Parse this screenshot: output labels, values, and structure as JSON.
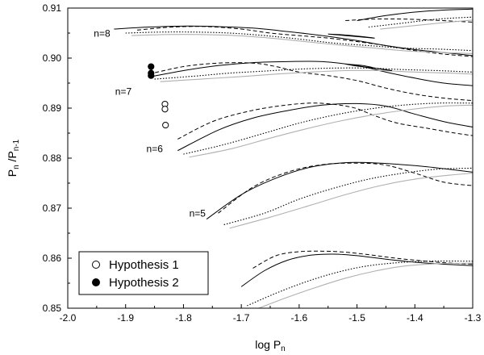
{
  "chart_data": {
    "type": "line",
    "title": "",
    "xlabel": {
      "main": "log P",
      "sub": "n"
    },
    "ylabel": {
      "main": "P",
      "sub1": "n",
      "mid": " /P",
      "sub2": "n-1"
    },
    "xlim": [
      -2.0,
      -1.3
    ],
    "ylim": [
      0.85,
      0.91
    ],
    "x_ticks": [
      -2.0,
      -1.9,
      -1.8,
      -1.7,
      -1.6,
      -1.5,
      -1.4,
      -1.3
    ],
    "x_tick_labels": [
      "-2.0",
      "-1.9",
      "-1.8",
      "-1.7",
      "-1.6",
      "-1.5",
      "-1.4",
      "-1.3"
    ],
    "y_ticks": [
      0.85,
      0.86,
      0.87,
      0.88,
      0.89,
      0.9,
      0.91
    ],
    "y_tick_labels": [
      "0.85",
      "0.86",
      "0.87",
      "0.88",
      "0.89",
      "0.90",
      "0.91"
    ],
    "styles": {
      "solid": {
        "color": "#000000",
        "dash": ""
      },
      "dashed": {
        "color": "#000000",
        "dash": "5,3"
      },
      "dotted": {
        "color": "#000000",
        "dash": "1.5,2"
      },
      "gray": {
        "color": "#b0b0b0",
        "dash": ""
      }
    },
    "series": [
      {
        "name": "n=5 solid",
        "style": "solid",
        "points": [
          [
            -1.76,
            0.8678
          ],
          [
            -1.7,
            0.8727
          ],
          [
            -1.64,
            0.876
          ],
          [
            -1.58,
            0.8782
          ],
          [
            -1.52,
            0.8791
          ],
          [
            -1.46,
            0.879
          ],
          [
            -1.4,
            0.8785
          ],
          [
            -1.35,
            0.8779
          ],
          [
            -1.3,
            0.8772
          ]
        ]
      },
      {
        "name": "n=5 dashed",
        "style": "dashed",
        "points": [
          [
            -1.74,
            0.869
          ],
          [
            -1.68,
            0.8742
          ],
          [
            -1.62,
            0.8772
          ],
          [
            -1.56,
            0.8787
          ],
          [
            -1.5,
            0.879
          ],
          [
            -1.45,
            0.8786
          ],
          [
            -1.4,
            0.877
          ],
          [
            -1.35,
            0.8752
          ],
          [
            -1.3,
            0.8745
          ]
        ]
      },
      {
        "name": "n=5 dotted",
        "style": "dotted",
        "points": [
          [
            -1.73,
            0.8667
          ],
          [
            -1.66,
            0.869
          ],
          [
            -1.6,
            0.8718
          ],
          [
            -1.54,
            0.874
          ],
          [
            -1.48,
            0.8758
          ],
          [
            -1.42,
            0.877
          ],
          [
            -1.36,
            0.8778
          ],
          [
            -1.3,
            0.878
          ]
        ]
      },
      {
        "name": "n=5 gray",
        "style": "gray",
        "points": [
          [
            -1.72,
            0.866
          ],
          [
            -1.65,
            0.8682
          ],
          [
            -1.58,
            0.8706
          ],
          [
            -1.52,
            0.8727
          ],
          [
            -1.46,
            0.8745
          ],
          [
            -1.4,
            0.8758
          ],
          [
            -1.34,
            0.8766
          ],
          [
            -1.3,
            0.877
          ]
        ]
      },
      {
        "name": "n=6 solid",
        "style": "solid",
        "points": [
          [
            -1.81,
            0.8815
          ],
          [
            -1.74,
            0.8856
          ],
          [
            -1.68,
            0.888
          ],
          [
            -1.62,
            0.8895
          ],
          [
            -1.56,
            0.8906
          ],
          [
            -1.5,
            0.8909
          ],
          [
            -1.45,
            0.8904
          ],
          [
            -1.4,
            0.8888
          ],
          [
            -1.35,
            0.8873
          ],
          [
            -1.3,
            0.8862
          ]
        ]
      },
      {
        "name": "n=6 dashed",
        "style": "dashed",
        "points": [
          [
            -1.81,
            0.8838
          ],
          [
            -1.75,
            0.8873
          ],
          [
            -1.69,
            0.8893
          ],
          [
            -1.63,
            0.8905
          ],
          [
            -1.57,
            0.891
          ],
          [
            -1.51,
            0.8902
          ],
          [
            -1.47,
            0.8885
          ],
          [
            -1.43,
            0.887
          ],
          [
            -1.38,
            0.886
          ],
          [
            -1.33,
            0.885
          ],
          [
            -1.3,
            0.8845
          ]
        ]
      },
      {
        "name": "n=6 dotted",
        "style": "dotted",
        "points": [
          [
            -1.8,
            0.8808
          ],
          [
            -1.73,
            0.8827
          ],
          [
            -1.66,
            0.885
          ],
          [
            -1.6,
            0.887
          ],
          [
            -1.54,
            0.8886
          ],
          [
            -1.48,
            0.8898
          ],
          [
            -1.42,
            0.8906
          ],
          [
            -1.36,
            0.891
          ],
          [
            -1.3,
            0.891
          ]
        ]
      },
      {
        "name": "n=6 gray",
        "style": "gray",
        "points": [
          [
            -1.79,
            0.8802
          ],
          [
            -1.72,
            0.8818
          ],
          [
            -1.65,
            0.884
          ],
          [
            -1.59,
            0.8858
          ],
          [
            -1.53,
            0.8874
          ],
          [
            -1.47,
            0.8887
          ],
          [
            -1.41,
            0.8897
          ],
          [
            -1.35,
            0.8904
          ],
          [
            -1.3,
            0.8906
          ]
        ]
      },
      {
        "name": "n=7 solid",
        "style": "solid",
        "points": [
          [
            -1.86,
            0.8962
          ],
          [
            -1.8,
            0.8975
          ],
          [
            -1.74,
            0.8985
          ],
          [
            -1.68,
            0.8991
          ],
          [
            -1.62,
            0.8993
          ],
          [
            -1.56,
            0.8993
          ],
          [
            -1.5,
            0.8985
          ],
          [
            -1.45,
            0.8972
          ],
          [
            -1.4,
            0.896
          ],
          [
            -1.35,
            0.895
          ],
          [
            -1.3,
            0.8945
          ]
        ]
      },
      {
        "name": "n=7 dashed",
        "style": "dashed",
        "points": [
          [
            -1.86,
            0.8968
          ],
          [
            -1.8,
            0.8983
          ],
          [
            -1.74,
            0.899
          ],
          [
            -1.68,
            0.899
          ],
          [
            -1.64,
            0.8983
          ],
          [
            -1.6,
            0.8972
          ],
          [
            -1.55,
            0.8965
          ],
          [
            -1.5,
            0.8955
          ],
          [
            -1.45,
            0.894
          ],
          [
            -1.4,
            0.8928
          ],
          [
            -1.35,
            0.892
          ],
          [
            -1.3,
            0.8915
          ]
        ]
      },
      {
        "name": "n=7 dotted",
        "style": "dotted",
        "points": [
          [
            -1.85,
            0.8958
          ],
          [
            -1.78,
            0.8964
          ],
          [
            -1.72,
            0.897
          ],
          [
            -1.66,
            0.8974
          ],
          [
            -1.6,
            0.8978
          ],
          [
            -1.54,
            0.898
          ],
          [
            -1.48,
            0.898
          ],
          [
            -1.42,
            0.8977
          ],
          [
            -1.36,
            0.8975
          ],
          [
            -1.3,
            0.8972
          ]
        ]
      },
      {
        "name": "n=7 gray",
        "style": "gray",
        "points": [
          [
            -1.84,
            0.8953
          ],
          [
            -1.77,
            0.8958
          ],
          [
            -1.7,
            0.8963
          ],
          [
            -1.64,
            0.8968
          ],
          [
            -1.58,
            0.8972
          ],
          [
            -1.52,
            0.8975
          ],
          [
            -1.46,
            0.8975
          ],
          [
            -1.4,
            0.8972
          ],
          [
            -1.34,
            0.897
          ],
          [
            -1.3,
            0.8968
          ]
        ]
      },
      {
        "name": "n=7 loop",
        "style": "solid",
        "points": [
          [
            -1.52,
            0.8988
          ],
          [
            -1.49,
            0.8985
          ],
          [
            -1.46,
            0.8978
          ],
          [
            -1.44,
            0.8975
          ],
          [
            -1.47,
            0.898
          ],
          [
            -1.5,
            0.8984
          ],
          [
            -1.52,
            0.8988
          ]
        ]
      },
      {
        "name": "n=8 solid",
        "style": "solid",
        "points": [
          [
            -1.92,
            0.9058
          ],
          [
            -1.86,
            0.9062
          ],
          [
            -1.8,
            0.9064
          ],
          [
            -1.74,
            0.9063
          ],
          [
            -1.68,
            0.906
          ],
          [
            -1.62,
            0.9053
          ],
          [
            -1.56,
            0.9045
          ],
          [
            -1.5,
            0.9035
          ],
          [
            -1.45,
            0.9025
          ],
          [
            -1.4,
            0.9017
          ],
          [
            -1.35,
            0.9011
          ],
          [
            -1.3,
            0.9005
          ]
        ]
      },
      {
        "name": "n=8 dashed",
        "style": "dashed",
        "points": [
          [
            -1.88,
            0.9056
          ],
          [
            -1.82,
            0.9062
          ],
          [
            -1.76,
            0.9063
          ],
          [
            -1.7,
            0.9058
          ],
          [
            -1.65,
            0.905
          ],
          [
            -1.6,
            0.9045
          ],
          [
            -1.55,
            0.904
          ],
          [
            -1.5,
            0.9033
          ],
          [
            -1.45,
            0.9025
          ],
          [
            -1.4,
            0.9015
          ],
          [
            -1.35,
            0.9008
          ],
          [
            -1.3,
            0.9003
          ]
        ]
      },
      {
        "name": "n=8 dotted",
        "style": "dotted",
        "points": [
          [
            -1.9,
            0.905
          ],
          [
            -1.84,
            0.9052
          ],
          [
            -1.78,
            0.9052
          ],
          [
            -1.72,
            0.905
          ],
          [
            -1.66,
            0.9045
          ],
          [
            -1.6,
            0.9038
          ],
          [
            -1.54,
            0.903
          ],
          [
            -1.48,
            0.9025
          ],
          [
            -1.42,
            0.902
          ],
          [
            -1.36,
            0.9018
          ],
          [
            -1.3,
            0.9015
          ]
        ]
      },
      {
        "name": "n=8 gray",
        "style": "gray",
        "points": [
          [
            -1.89,
            0.9045
          ],
          [
            -1.83,
            0.9047
          ],
          [
            -1.77,
            0.9047
          ],
          [
            -1.71,
            0.9045
          ],
          [
            -1.65,
            0.904
          ],
          [
            -1.59,
            0.9033
          ],
          [
            -1.53,
            0.9026
          ],
          [
            -1.47,
            0.902
          ],
          [
            -1.41,
            0.9014
          ],
          [
            -1.35,
            0.9011
          ],
          [
            -1.3,
            0.9009
          ]
        ]
      },
      {
        "name": "n=8 loop",
        "style": "solid",
        "points": [
          [
            -1.55,
            0.9048
          ],
          [
            -1.52,
            0.9045
          ],
          [
            -1.49,
            0.9042
          ],
          [
            -1.47,
            0.904
          ],
          [
            -1.5,
            0.9044
          ],
          [
            -1.53,
            0.9047
          ],
          [
            -1.55,
            0.9048
          ]
        ]
      },
      {
        "name": "upper solid 1",
        "style": "solid",
        "points": [
          [
            -1.5,
            0.9075
          ],
          [
            -1.45,
            0.9085
          ],
          [
            -1.4,
            0.9092
          ],
          [
            -1.35,
            0.9096
          ],
          [
            -1.3,
            0.9098
          ]
        ]
      },
      {
        "name": "upper dashed 1",
        "style": "dashed",
        "points": [
          [
            -1.52,
            0.9075
          ],
          [
            -1.47,
            0.9078
          ],
          [
            -1.42,
            0.9078
          ],
          [
            -1.37,
            0.9076
          ],
          [
            -1.32,
            0.9073
          ],
          [
            -1.3,
            0.9072
          ]
        ]
      },
      {
        "name": "upper dotted 1",
        "style": "dotted",
        "points": [
          [
            -1.48,
            0.9062
          ],
          [
            -1.42,
            0.907
          ],
          [
            -1.36,
            0.9078
          ],
          [
            -1.3,
            0.9082
          ]
        ]
      },
      {
        "name": "upper gray 1",
        "style": "gray",
        "points": [
          [
            -1.46,
            0.9058
          ],
          [
            -1.4,
            0.9065
          ],
          [
            -1.34,
            0.9072
          ],
          [
            -1.3,
            0.9076
          ]
        ]
      },
      {
        "name": "n=4 solid",
        "style": "solid",
        "points": [
          [
            -1.7,
            0.8543
          ],
          [
            -1.66,
            0.8575
          ],
          [
            -1.62,
            0.8596
          ],
          [
            -1.58,
            0.8606
          ],
          [
            -1.54,
            0.8608
          ],
          [
            -1.5,
            0.8605
          ],
          [
            -1.45,
            0.8598
          ],
          [
            -1.4,
            0.8592
          ],
          [
            -1.35,
            0.8588
          ],
          [
            -1.3,
            0.8585
          ]
        ]
      },
      {
        "name": "n=4 dashed",
        "style": "dashed",
        "points": [
          [
            -1.68,
            0.858
          ],
          [
            -1.64,
            0.8605
          ],
          [
            -1.6,
            0.8613
          ],
          [
            -1.56,
            0.8614
          ],
          [
            -1.52,
            0.8612
          ],
          [
            -1.48,
            0.8607
          ],
          [
            -1.44,
            0.8601
          ],
          [
            -1.4,
            0.8596
          ],
          [
            -1.35,
            0.8591
          ],
          [
            -1.3,
            0.8588
          ]
        ]
      },
      {
        "name": "n=4 dotted",
        "style": "dotted",
        "points": [
          [
            -1.69,
            0.8505
          ],
          [
            -1.64,
            0.853
          ],
          [
            -1.59,
            0.8552
          ],
          [
            -1.54,
            0.857
          ],
          [
            -1.49,
            0.8583
          ],
          [
            -1.44,
            0.859
          ],
          [
            -1.38,
            0.8594
          ],
          [
            -1.3,
            0.8594
          ]
        ]
      },
      {
        "name": "n=4 gray",
        "style": "gray",
        "points": [
          [
            -1.67,
            0.85
          ],
          [
            -1.62,
            0.8522
          ],
          [
            -1.57,
            0.8542
          ],
          [
            -1.52,
            0.856
          ],
          [
            -1.47,
            0.8574
          ],
          [
            -1.42,
            0.8584
          ],
          [
            -1.36,
            0.8589
          ],
          [
            -1.3,
            0.859
          ]
        ]
      },
      {
        "name": "hyp1",
        "style": "points-open",
        "points": [
          [
            -1.832,
            0.8908
          ],
          [
            -1.832,
            0.8898
          ],
          [
            -1.831,
            0.8866
          ]
        ]
      },
      {
        "name": "hyp2",
        "style": "points-filled",
        "points": [
          [
            -1.856,
            0.8983
          ],
          [
            -1.856,
            0.897
          ],
          [
            -1.856,
            0.8965
          ]
        ]
      }
    ],
    "annotations": [
      {
        "text": "n=8",
        "x": -1.955,
        "y": 0.9043
      },
      {
        "text": "n=7",
        "x": -1.918,
        "y": 0.8927
      },
      {
        "text": "n=6",
        "x": -1.864,
        "y": 0.8812
      },
      {
        "text": "n=5",
        "x": -1.79,
        "y": 0.8683
      }
    ],
    "legend": {
      "placement": "bottom-left",
      "entries": [
        {
          "label": "Hypothesis 1",
          "marker": "open-circle"
        },
        {
          "label": "Hypothesis 2",
          "marker": "filled-circle"
        }
      ]
    }
  }
}
